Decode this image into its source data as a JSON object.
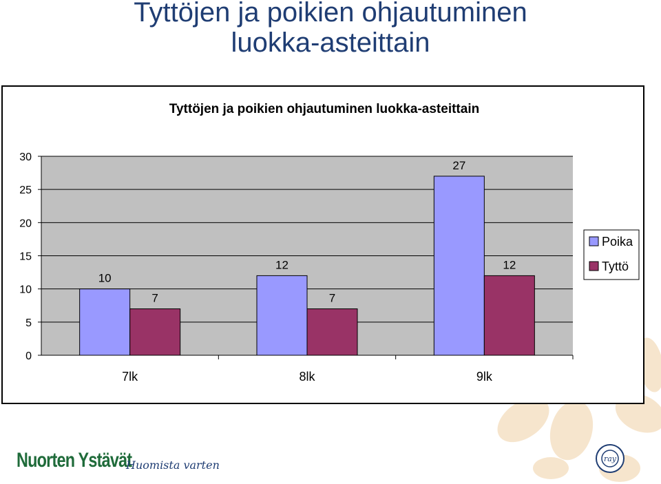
{
  "slide": {
    "title_line1": "Tyttöjen ja poikien ohjautuminen",
    "title_line2": "luokka-asteittain"
  },
  "footer": {
    "logo_text": "Nuorten Ystävät",
    "slogan": "Huomista varten",
    "badge_text": "ray"
  },
  "chart_data": {
    "type": "bar",
    "title": "Tyttöjen ja poikien ohjautuminen luokka-asteittain",
    "categories": [
      "7lk",
      "8lk",
      "9lk"
    ],
    "series": [
      {
        "name": "Poika",
        "values": [
          10,
          12,
          27
        ],
        "color": "#9999ff"
      },
      {
        "name": "Tyttö",
        "values": [
          7,
          7,
          12
        ],
        "color": "#993366"
      }
    ],
    "ylim": [
      0,
      30
    ],
    "yticks": [
      0,
      5,
      10,
      15,
      20,
      25,
      30
    ],
    "grid": true,
    "plot_background": "#c0c0c0",
    "legend_position": "right",
    "data_labels": true
  }
}
